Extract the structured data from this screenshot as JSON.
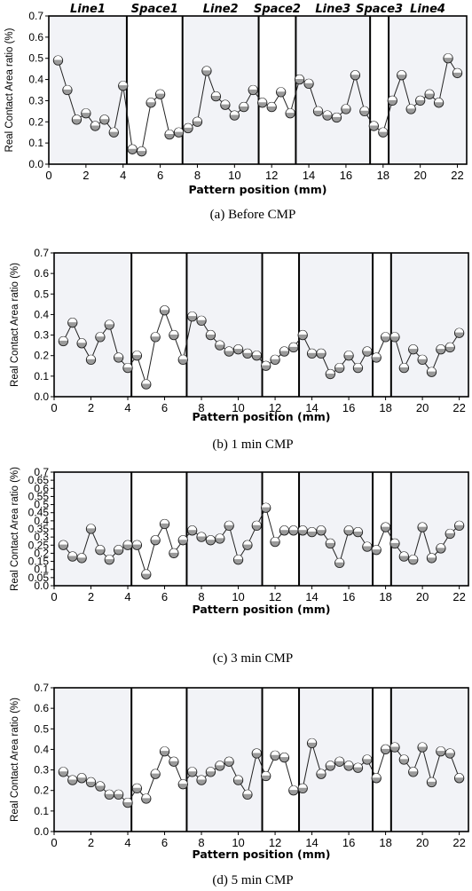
{
  "chart_data": [
    {
      "type": "line",
      "caption": "(a) Before CMP",
      "xlabel": "Pattern position (mm)",
      "ylabel": "Real Contact Area ratio (%)",
      "xlim": [
        0,
        22.5
      ],
      "ylim": [
        0,
        0.7
      ],
      "xticks": [
        0,
        2,
        4,
        6,
        8,
        10,
        12,
        14,
        16,
        18,
        20,
        22
      ],
      "yticks": [
        0.0,
        0.1,
        0.2,
        0.3,
        0.4,
        0.5,
        0.6,
        0.7
      ],
      "region_labels": [
        "Line1",
        "Space1",
        "Line2",
        "Space2",
        "Line3",
        "Space3",
        "Line4"
      ],
      "regions": [
        {
          "name": "Line1",
          "x0": 0,
          "x1": 4.2,
          "shaded": true
        },
        {
          "name": "Space1",
          "x0": 4.2,
          "x1": 7.2,
          "shaded": false
        },
        {
          "name": "Line2",
          "x0": 7.2,
          "x1": 11.3,
          "shaded": true
        },
        {
          "name": "Space2",
          "x0": 11.3,
          "x1": 13.3,
          "shaded": false
        },
        {
          "name": "Line3",
          "x0": 13.3,
          "x1": 17.3,
          "shaded": true
        },
        {
          "name": "Space3",
          "x0": 17.3,
          "x1": 18.3,
          "shaded": false
        },
        {
          "name": "Line4",
          "x0": 18.3,
          "x1": 22.5,
          "shaded": true
        }
      ],
      "x": [
        0.5,
        1.0,
        1.5,
        2.0,
        2.5,
        3.0,
        3.5,
        4.0,
        4.5,
        5.0,
        5.5,
        6.0,
        6.5,
        7.0,
        7.5,
        8.0,
        8.5,
        9.0,
        9.5,
        10.0,
        10.5,
        11.0,
        11.5,
        12.0,
        12.5,
        13.0,
        13.5,
        14.0,
        14.5,
        15.0,
        15.5,
        16.0,
        16.5,
        17.0,
        17.5,
        18.0,
        18.5,
        19.0,
        19.5,
        20.0,
        20.5,
        21.0,
        21.5,
        22.0
      ],
      "y": [
        0.49,
        0.35,
        0.21,
        0.24,
        0.18,
        0.21,
        0.15,
        0.37,
        0.07,
        0.06,
        0.29,
        0.33,
        0.14,
        0.15,
        0.17,
        0.2,
        0.44,
        0.32,
        0.28,
        0.23,
        0.27,
        0.35,
        0.29,
        0.27,
        0.34,
        0.24,
        0.4,
        0.38,
        0.25,
        0.23,
        0.22,
        0.26,
        0.42,
        0.25,
        0.18,
        0.15,
        0.3,
        0.42,
        0.26,
        0.3,
        0.33,
        0.29,
        0.5,
        0.43
      ]
    },
    {
      "type": "line",
      "caption": "(b) 1 min CMP",
      "xlabel": "Pattern position (mm)",
      "ylabel": "Real Contact Area ratio (%)",
      "xlim": [
        0,
        22.5
      ],
      "ylim": [
        0,
        0.7
      ],
      "xticks": [
        0,
        2,
        4,
        6,
        8,
        10,
        12,
        14,
        16,
        18,
        20,
        22
      ],
      "yticks": [
        0.0,
        0.1,
        0.2,
        0.3,
        0.4,
        0.5,
        0.6,
        0.7
      ],
      "x": [
        0.5,
        1.0,
        1.5,
        2.0,
        2.5,
        3.0,
        3.5,
        4.0,
        4.5,
        5.0,
        5.5,
        6.0,
        6.5,
        7.0,
        7.5,
        8.0,
        8.5,
        9.0,
        9.5,
        10.0,
        10.5,
        11.0,
        11.5,
        12.0,
        12.5,
        13.0,
        13.5,
        14.0,
        14.5,
        15.0,
        15.5,
        16.0,
        16.5,
        17.0,
        17.5,
        18.0,
        18.5,
        19.0,
        19.5,
        20.0,
        20.5,
        21.0,
        21.5,
        22.0
      ],
      "y": [
        0.27,
        0.36,
        0.26,
        0.18,
        0.29,
        0.35,
        0.19,
        0.14,
        0.2,
        0.06,
        0.29,
        0.42,
        0.3,
        0.18,
        0.39,
        0.37,
        0.3,
        0.25,
        0.22,
        0.23,
        0.21,
        0.2,
        0.15,
        0.18,
        0.22,
        0.24,
        0.3,
        0.21,
        0.21,
        0.11,
        0.14,
        0.2,
        0.14,
        0.22,
        0.19,
        0.29,
        0.29,
        0.14,
        0.23,
        0.18,
        0.12,
        0.23,
        0.24,
        0.31
      ]
    },
    {
      "type": "line",
      "caption": "(c) 3 min CMP",
      "xlabel": "Pattern position (mm)",
      "ylabel": "Real Contact Area ratio (%)",
      "xlim": [
        0,
        22.5
      ],
      "ylim": [
        0,
        0.7
      ],
      "xticks": [
        0,
        2,
        4,
        6,
        8,
        10,
        12,
        14,
        16,
        18,
        20,
        22
      ],
      "yticks": [
        0.0,
        0.05,
        0.1,
        0.15,
        0.2,
        0.25,
        0.3,
        0.35,
        0.4,
        0.45,
        0.5,
        0.55,
        0.6,
        0.65,
        0.7
      ],
      "x": [
        0.5,
        1.0,
        1.5,
        2.0,
        2.5,
        3.0,
        3.5,
        4.0,
        4.5,
        5.0,
        5.5,
        6.0,
        6.5,
        7.0,
        7.5,
        8.0,
        8.5,
        9.0,
        9.5,
        10.0,
        10.5,
        11.0,
        11.5,
        12.0,
        12.5,
        13.0,
        13.5,
        14.0,
        14.5,
        15.0,
        15.5,
        16.0,
        16.5,
        17.0,
        17.5,
        18.0,
        18.5,
        19.0,
        19.5,
        20.0,
        20.5,
        21.0,
        21.5,
        22.0
      ],
      "y": [
        0.25,
        0.18,
        0.17,
        0.35,
        0.22,
        0.16,
        0.22,
        0.25,
        0.25,
        0.07,
        0.28,
        0.38,
        0.2,
        0.28,
        0.34,
        0.3,
        0.28,
        0.29,
        0.37,
        0.16,
        0.25,
        0.37,
        0.48,
        0.27,
        0.34,
        0.34,
        0.34,
        0.33,
        0.34,
        0.26,
        0.14,
        0.34,
        0.33,
        0.24,
        0.22,
        0.36,
        0.26,
        0.18,
        0.16,
        0.36,
        0.17,
        0.23,
        0.32,
        0.37
      ]
    },
    {
      "type": "line",
      "caption": "(d) 5 min CMP",
      "xlabel": "Pattern position (mm)",
      "ylabel": "Real Contact Area ratio (%)",
      "xlim": [
        0,
        22.5
      ],
      "ylim": [
        0,
        0.7
      ],
      "xticks": [
        0,
        2,
        4,
        6,
        8,
        10,
        12,
        14,
        16,
        18,
        20,
        22
      ],
      "yticks": [
        0.0,
        0.1,
        0.2,
        0.3,
        0.4,
        0.5,
        0.6,
        0.7
      ],
      "x": [
        0.5,
        1.0,
        1.5,
        2.0,
        2.5,
        3.0,
        3.5,
        4.0,
        4.5,
        5.0,
        5.5,
        6.0,
        6.5,
        7.0,
        7.5,
        8.0,
        8.5,
        9.0,
        9.5,
        10.0,
        10.5,
        11.0,
        11.5,
        12.0,
        12.5,
        13.0,
        13.5,
        14.0,
        14.5,
        15.0,
        15.5,
        16.0,
        16.5,
        17.0,
        17.5,
        18.0,
        18.5,
        19.0,
        19.5,
        20.0,
        20.5,
        21.0,
        21.5,
        22.0
      ],
      "y": [
        0.29,
        0.25,
        0.26,
        0.24,
        0.22,
        0.18,
        0.18,
        0.14,
        0.21,
        0.16,
        0.28,
        0.39,
        0.34,
        0.23,
        0.29,
        0.25,
        0.29,
        0.32,
        0.34,
        0.25,
        0.18,
        0.38,
        0.27,
        0.37,
        0.36,
        0.2,
        0.21,
        0.43,
        0.28,
        0.32,
        0.34,
        0.32,
        0.31,
        0.35,
        0.26,
        0.4,
        0.41,
        0.35,
        0.29,
        0.41,
        0.24,
        0.39,
        0.38,
        0.26
      ]
    }
  ]
}
